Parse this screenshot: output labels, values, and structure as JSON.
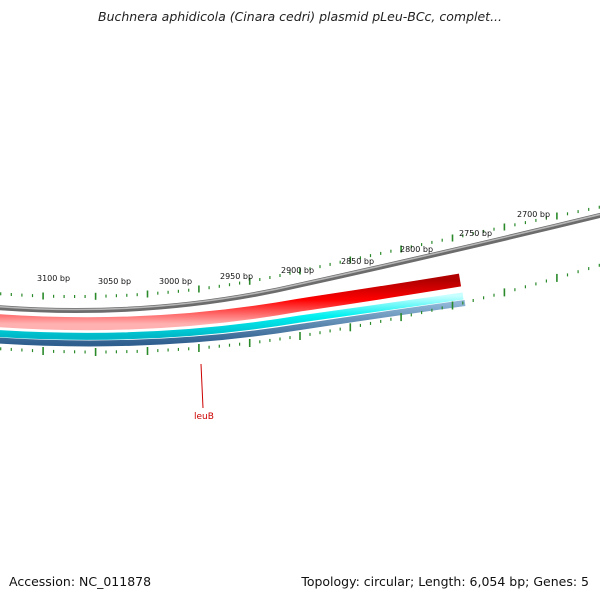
{
  "title": "Buchnera aphidicola (Cinara cedri) plasmid pLeu-BCc, complet...",
  "footer": {
    "accession": "Accession: NC_011878",
    "summary": "Topology: circular; Length: 6,054 bp; Genes: 5"
  },
  "ruler_labels": [
    "3100 bp",
    "3050 bp",
    "3000 bp",
    "2950 bp",
    "2900 bp",
    "2850 bp",
    "2800 bp",
    "2750 bp",
    "2700 bp"
  ],
  "genes": [
    {
      "name": "leuB"
    }
  ],
  "colors": {
    "backbone": "#808080",
    "tick": "#2a8a2a",
    "gene_red": "#ee0000",
    "cyan": "#00e5ee",
    "steel": "#4a7fb0",
    "gene_label": "#cc0000"
  }
}
